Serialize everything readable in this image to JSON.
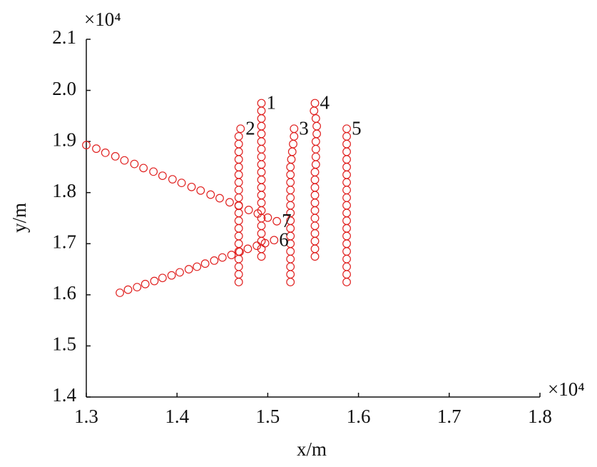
{
  "chart_data": {
    "type": "scatter",
    "x_label": "x/m",
    "y_label": "y/m",
    "x_multiplier": "×10⁴",
    "y_multiplier": "×10⁴",
    "xlim": [
      1.3,
      1.8
    ],
    "ylim": [
      1.4,
      2.1
    ],
    "xticks": [
      1.3,
      1.4,
      1.5,
      1.6,
      1.7,
      1.8
    ],
    "yticks": [
      1.4,
      1.5,
      1.6,
      1.7,
      1.8,
      1.9,
      {
        "value": 2.0,
        "label": "2.0"
      },
      2.1
    ],
    "series": [
      {
        "name": "1",
        "color": "#e0201f",
        "x": [
          1.493,
          1.493,
          1.493,
          1.493,
          1.493,
          1.493,
          1.493,
          1.493,
          1.493,
          1.493,
          1.493,
          1.493,
          1.493,
          1.493,
          1.493,
          1.493,
          1.493,
          1.493,
          1.493,
          1.493,
          1.493
        ],
        "values": [
          1.675,
          1.69,
          1.705,
          1.72,
          1.735,
          1.75,
          1.765,
          1.78,
          1.795,
          1.81,
          1.825,
          1.84,
          1.855,
          1.87,
          1.885,
          1.9,
          1.915,
          1.93,
          1.945,
          1.96,
          1.975
        ]
      },
      {
        "name": "2",
        "color": "#e0201f",
        "x": [
          1.468,
          1.468,
          1.468,
          1.468,
          1.468,
          1.468,
          1.468,
          1.468,
          1.468,
          1.468,
          1.468,
          1.468,
          1.468,
          1.468,
          1.468,
          1.468,
          1.468,
          1.468,
          1.468,
          1.468,
          1.47
        ],
        "values": [
          1.625,
          1.64,
          1.655,
          1.67,
          1.685,
          1.7,
          1.715,
          1.73,
          1.745,
          1.76,
          1.775,
          1.79,
          1.805,
          1.82,
          1.835,
          1.85,
          1.865,
          1.88,
          1.895,
          1.91,
          1.925
        ]
      },
      {
        "name": "3",
        "color": "#e0201f",
        "x": [
          1.525,
          1.525,
          1.525,
          1.525,
          1.525,
          1.525,
          1.525,
          1.525,
          1.525,
          1.525,
          1.525,
          1.525,
          1.525,
          1.525,
          1.525,
          1.525,
          1.526,
          1.527,
          1.528,
          1.529,
          1.529
        ],
        "values": [
          1.625,
          1.64,
          1.655,
          1.67,
          1.685,
          1.7,
          1.715,
          1.73,
          1.745,
          1.76,
          1.775,
          1.79,
          1.805,
          1.82,
          1.835,
          1.85,
          1.865,
          1.88,
          1.895,
          1.91,
          1.925
        ]
      },
      {
        "name": "4",
        "color": "#e0201f",
        "x": [
          1.552,
          1.552,
          1.552,
          1.552,
          1.552,
          1.552,
          1.552,
          1.552,
          1.552,
          1.552,
          1.552,
          1.552,
          1.553,
          1.553,
          1.553,
          1.553,
          1.554,
          1.554,
          1.553,
          1.551,
          1.552
        ],
        "values": [
          1.675,
          1.69,
          1.705,
          1.72,
          1.735,
          1.75,
          1.765,
          1.78,
          1.795,
          1.81,
          1.825,
          1.84,
          1.855,
          1.87,
          1.885,
          1.9,
          1.915,
          1.93,
          1.945,
          1.96,
          1.975
        ]
      },
      {
        "name": "5",
        "color": "#e0201f",
        "x": [
          1.587,
          1.587,
          1.587,
          1.587,
          1.587,
          1.587,
          1.587,
          1.587,
          1.587,
          1.587,
          1.587,
          1.587,
          1.587,
          1.587,
          1.587,
          1.587,
          1.587,
          1.587,
          1.587,
          1.587,
          1.587
        ],
        "values": [
          1.625,
          1.64,
          1.655,
          1.67,
          1.685,
          1.7,
          1.715,
          1.73,
          1.745,
          1.76,
          1.775,
          1.79,
          1.805,
          1.82,
          1.835,
          1.85,
          1.865,
          1.88,
          1.895,
          1.91,
          1.925
        ]
      },
      {
        "name": "6",
        "color": "#e0201f",
        "x": [
          1.337,
          1.346,
          1.356,
          1.365,
          1.375,
          1.384,
          1.394,
          1.403,
          1.413,
          1.422,
          1.431,
          1.441,
          1.45,
          1.46,
          1.469,
          1.478,
          1.488,
          1.497,
          1.507
        ],
        "values": [
          1.604,
          1.61,
          1.615,
          1.621,
          1.627,
          1.633,
          1.638,
          1.644,
          1.65,
          1.655,
          1.661,
          1.667,
          1.673,
          1.678,
          1.684,
          1.69,
          1.696,
          1.701,
          1.707
        ]
      },
      {
        "name": "7",
        "color": "#e0201f",
        "x": [
          1.3,
          1.311,
          1.321,
          1.332,
          1.342,
          1.353,
          1.363,
          1.374,
          1.384,
          1.395,
          1.405,
          1.416,
          1.426,
          1.437,
          1.447,
          1.458,
          1.468,
          1.479,
          1.489,
          1.5,
          1.51
        ],
        "values": [
          1.893,
          1.886,
          1.878,
          1.871,
          1.863,
          1.856,
          1.848,
          1.841,
          1.833,
          1.826,
          1.819,
          1.811,
          1.804,
          1.796,
          1.789,
          1.781,
          1.774,
          1.766,
          1.759,
          1.751,
          1.744
        ]
      }
    ]
  }
}
